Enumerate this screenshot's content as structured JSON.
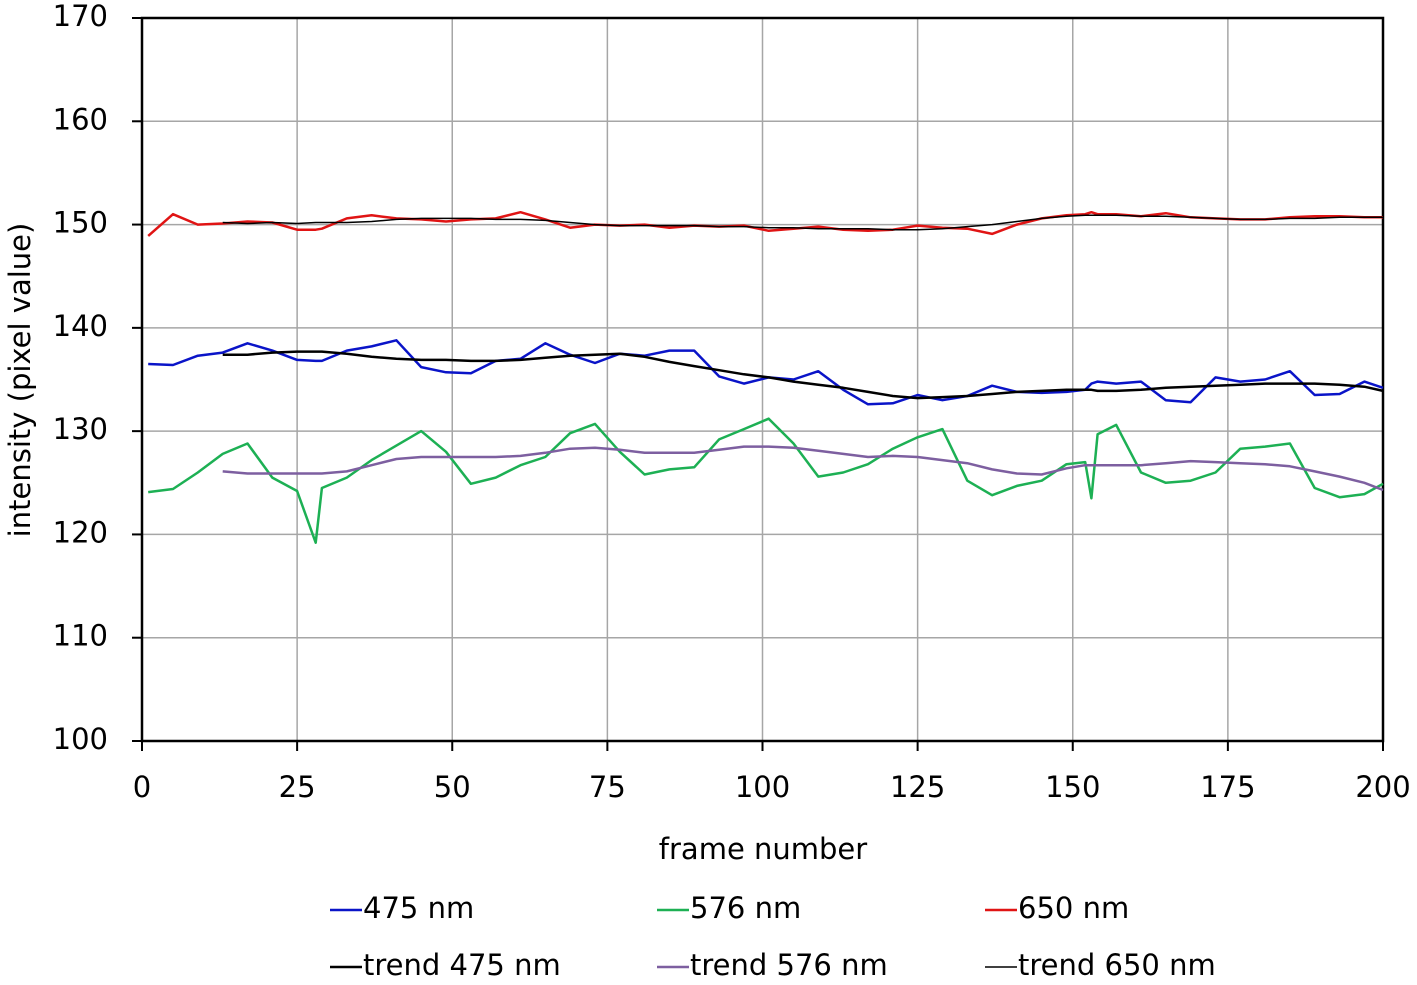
{
  "chart_data": {
    "type": "line",
    "x_label": "frame number",
    "y_label": "intensity (pixel value)",
    "xlim": [
      0,
      200
    ],
    "xticks": [
      0,
      25,
      50,
      75,
      100,
      125,
      150,
      175,
      200
    ],
    "ylim": [
      100,
      170
    ],
    "yticks": [
      100,
      110,
      120,
      130,
      140,
      150,
      160,
      170
    ],
    "grid": true,
    "legend": "bottom",
    "x": [
      1,
      5,
      9,
      13,
      17,
      21,
      25,
      28,
      29,
      33,
      37,
      41,
      45,
      49,
      53,
      57,
      61,
      65,
      69,
      73,
      77,
      81,
      85,
      89,
      93,
      97,
      101,
      105,
      109,
      113,
      117,
      121,
      125,
      129,
      133,
      137,
      141,
      145,
      149,
      152,
      153,
      154,
      157,
      161,
      165,
      169,
      173,
      177,
      181,
      185,
      189,
      193,
      197,
      200
    ],
    "series": [
      {
        "name": "475 nm",
        "color": "#0a14c8",
        "width": 2.5,
        "values": [
          136.5,
          136.4,
          137.3,
          137.6,
          138.5,
          137.8,
          136.9,
          136.8,
          136.8,
          137.8,
          138.2,
          138.8,
          136.2,
          135.7,
          135.6,
          136.8,
          137.0,
          138.5,
          137.4,
          136.6,
          137.5,
          137.3,
          137.8,
          137.8,
          135.3,
          134.6,
          135.2,
          135.0,
          135.8,
          134.0,
          132.6,
          132.7,
          133.5,
          133.0,
          133.4,
          134.4,
          133.8,
          133.7,
          133.8,
          134.0,
          134.6,
          134.8,
          134.6,
          134.8,
          133.0,
          132.8,
          135.2,
          134.8,
          135.0,
          135.8,
          133.5,
          133.6,
          134.8,
          134.2
        ]
      },
      {
        "name": "576 nm",
        "color": "#1db054",
        "width": 2.5,
        "values": [
          124.1,
          124.4,
          126.0,
          127.8,
          128.8,
          125.5,
          124.2,
          119.2,
          124.5,
          125.5,
          127.2,
          128.6,
          130.0,
          128.0,
          124.9,
          125.5,
          126.7,
          127.5,
          129.8,
          130.7,
          128.0,
          125.8,
          126.3,
          126.5,
          129.2,
          130.2,
          131.2,
          128.8,
          125.6,
          126.0,
          126.8,
          128.3,
          129.4,
          130.2,
          125.2,
          123.8,
          124.7,
          125.2,
          126.8,
          127.0,
          123.5,
          129.7,
          130.6,
          126.0,
          125.0,
          125.2,
          126.0,
          128.3,
          128.5,
          128.8,
          124.5,
          123.6,
          123.9,
          124.9
        ]
      },
      {
        "name": "650 nm",
        "color": "#e01414",
        "width": 2.5,
        "values": [
          148.9,
          151.0,
          150.0,
          150.1,
          150.3,
          150.2,
          149.5,
          149.5,
          149.6,
          150.6,
          150.9,
          150.6,
          150.5,
          150.3,
          150.5,
          150.6,
          151.2,
          150.5,
          149.7,
          150.0,
          149.9,
          150.0,
          149.7,
          149.9,
          149.8,
          149.9,
          149.4,
          149.6,
          149.8,
          149.5,
          149.4,
          149.5,
          149.9,
          149.7,
          149.6,
          149.1,
          150.0,
          150.6,
          150.9,
          151.0,
          151.2,
          151.0,
          151.0,
          150.8,
          151.1,
          150.7,
          150.6,
          150.5,
          150.5,
          150.7,
          150.8,
          150.8,
          150.7,
          150.7
        ]
      },
      {
        "name": "trend 475 nm",
        "color": "#000000",
        "width": 2.5,
        "values": [
          null,
          null,
          null,
          137.4,
          137.4,
          137.6,
          137.7,
          137.7,
          137.7,
          137.5,
          137.2,
          137.0,
          136.9,
          136.9,
          136.8,
          136.8,
          136.9,
          137.1,
          137.3,
          137.4,
          137.5,
          137.2,
          136.7,
          136.3,
          135.9,
          135.5,
          135.2,
          134.8,
          134.5,
          134.2,
          133.8,
          133.4,
          133.2,
          133.3,
          133.4,
          133.6,
          133.8,
          133.9,
          134.0,
          134.0,
          134.0,
          133.9,
          133.9,
          134.0,
          134.2,
          134.3,
          134.4,
          134.5,
          134.6,
          134.6,
          134.6,
          134.5,
          134.3,
          133.9
        ]
      },
      {
        "name": "trend 576 nm",
        "color": "#7d5fa0",
        "width": 2.5,
        "values": [
          null,
          null,
          null,
          126.1,
          125.9,
          125.9,
          125.9,
          125.9,
          125.9,
          126.1,
          126.7,
          127.3,
          127.5,
          127.5,
          127.5,
          127.5,
          127.6,
          127.9,
          128.3,
          128.4,
          128.2,
          127.9,
          127.9,
          127.9,
          128.2,
          128.5,
          128.5,
          128.4,
          128.1,
          127.8,
          127.5,
          127.6,
          127.5,
          127.2,
          126.9,
          126.3,
          125.9,
          125.8,
          126.4,
          126.7,
          126.7,
          126.7,
          126.7,
          126.7,
          126.9,
          127.1,
          127.0,
          126.9,
          126.8,
          126.6,
          126.1,
          125.6,
          125.0,
          124.3
        ]
      },
      {
        "name": "trend 650 nm",
        "color": "#000000",
        "width": 1.5,
        "values": [
          null,
          null,
          null,
          150.2,
          150.1,
          150.2,
          150.1,
          150.2,
          150.2,
          150.2,
          150.3,
          150.5,
          150.6,
          150.6,
          150.6,
          150.5,
          150.5,
          150.4,
          150.2,
          150.0,
          149.9,
          149.9,
          149.9,
          149.9,
          149.8,
          149.8,
          149.7,
          149.7,
          149.6,
          149.6,
          149.6,
          149.5,
          149.5,
          149.6,
          149.8,
          150.0,
          150.3,
          150.6,
          150.8,
          150.9,
          150.9,
          150.9,
          150.9,
          150.8,
          150.8,
          150.7,
          150.6,
          150.5,
          150.5,
          150.6,
          150.6,
          150.7,
          150.7,
          150.7
        ]
      }
    ]
  }
}
